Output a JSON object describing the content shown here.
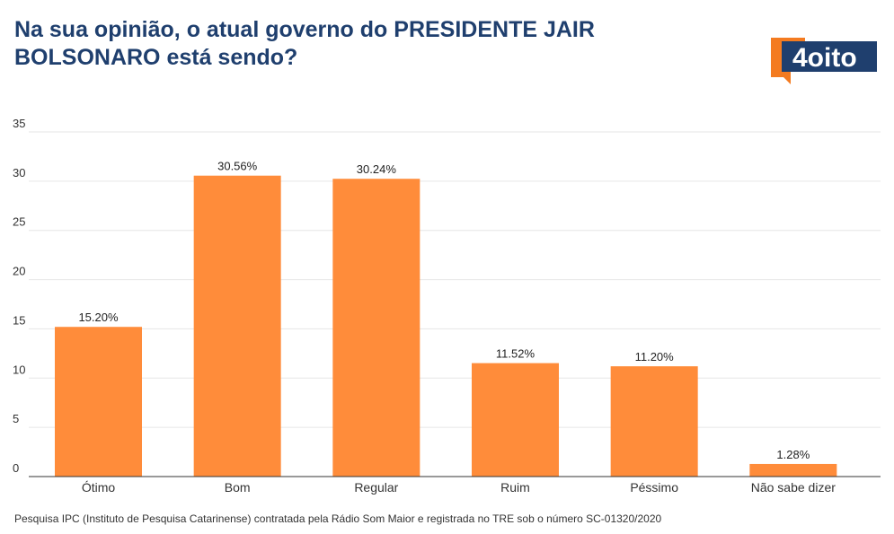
{
  "header": {
    "title": "Na sua opinião, o atual governo do PRESIDENTE JAIR BOLSONARO está sendo?"
  },
  "logo": {
    "text": "4oito",
    "icon": "4oito-logo",
    "colors": {
      "orange": "#f47b20",
      "navy": "#1f3f6e"
    }
  },
  "footnote": "Pesquisa IPC (Instituto de Pesquisa Catarinense) contratada pela Rádio Som Maior e registrada no TRE sob o número SC-01320/2020",
  "chart_data": {
    "type": "bar",
    "title": "Na sua opinião, o atual governo do PRESIDENTE JAIR BOLSONARO está sendo?",
    "categories": [
      "Ótimo",
      "Bom",
      "Regular",
      "Ruim",
      "Péssimo",
      "Não sabe dizer"
    ],
    "values": [
      15.2,
      30.56,
      30.24,
      11.52,
      11.2,
      1.28
    ],
    "data_labels": [
      "15.20%",
      "30.56%",
      "30.24%",
      "11.52%",
      "11.20%",
      "1.28%"
    ],
    "yticks": [
      0,
      5,
      10,
      15,
      20,
      25,
      30,
      35
    ],
    "ylim": [
      0,
      35
    ],
    "xlabel": "",
    "ylabel": "",
    "grid": true,
    "legend": "none",
    "bar_color": "#ff8c3a",
    "grid_color": "#e6e6e6"
  }
}
